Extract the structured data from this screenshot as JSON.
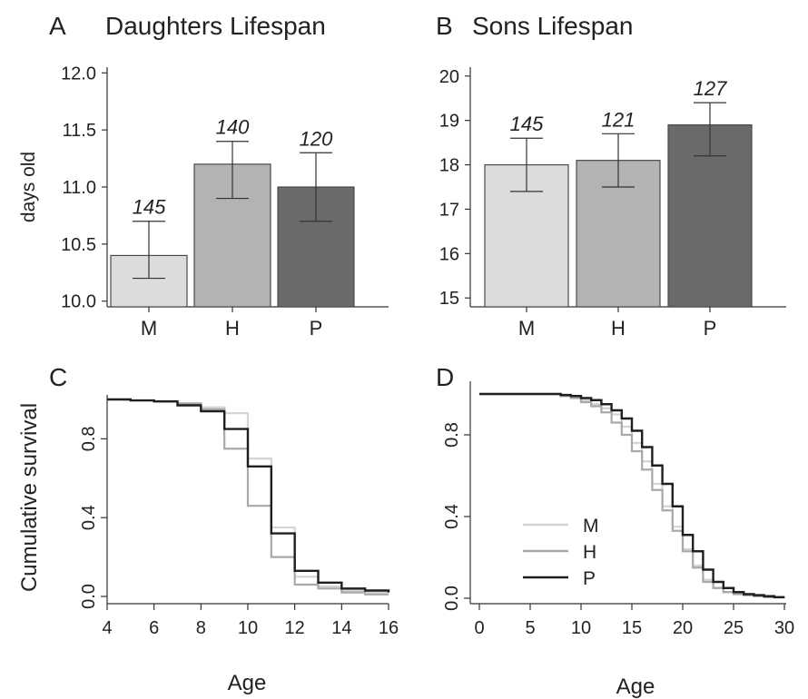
{
  "colors": {
    "M": "#dcdcdc",
    "H": "#b3b3b3",
    "P": "#6a6a6a",
    "line_M": "#d4d4d4",
    "line_H": "#a9a9a9",
    "line_P": "#1f1f1f"
  },
  "chart_data": [
    {
      "panel": "A",
      "type": "bar",
      "title": "Daughters Lifespan",
      "ylabel": "days old",
      "xlabel": "",
      "categories": [
        "M",
        "H",
        "P"
      ],
      "values": [
        10.4,
        11.2,
        11.0
      ],
      "err_low": [
        10.2,
        10.9,
        10.7
      ],
      "err_high": [
        10.7,
        11.4,
        11.3
      ],
      "n_labels": [
        "145",
        "140",
        "120"
      ],
      "ylim": [
        9.95,
        12.05
      ],
      "yticks": [
        10.0,
        10.5,
        11.0,
        11.5,
        12.0
      ],
      "ytick_labels": [
        "10.0",
        "10.5",
        "11.0",
        "11.5",
        "12.0"
      ]
    },
    {
      "panel": "B",
      "type": "bar",
      "title": "Sons Lifespan",
      "ylabel": "",
      "xlabel": "",
      "categories": [
        "M",
        "H",
        "P"
      ],
      "values": [
        18.0,
        18.1,
        18.9
      ],
      "err_low": [
        17.4,
        17.5,
        18.2
      ],
      "err_high": [
        18.6,
        18.7,
        19.4
      ],
      "n_labels": [
        "145",
        "121",
        "127"
      ],
      "ylim": [
        14.8,
        20.2
      ],
      "yticks": [
        15,
        16,
        17,
        18,
        19,
        20
      ],
      "ytick_labels": [
        "15",
        "16",
        "17",
        "18",
        "19",
        "20"
      ]
    },
    {
      "panel": "C",
      "type": "line",
      "title": "",
      "ylabel": "Cumulative survival",
      "xlabel": "Age",
      "xlim": [
        4,
        16
      ],
      "ylim": [
        0,
        1
      ],
      "xticks": [
        4,
        6,
        8,
        10,
        12,
        14,
        16
      ],
      "xtick_labels": [
        "4",
        "6",
        "8",
        "10",
        "12",
        "14",
        "16"
      ],
      "yticks": [
        0.0,
        0.4,
        0.8
      ],
      "ytick_labels": [
        "0.0",
        "0.4",
        "0.8"
      ],
      "series": [
        {
          "key": "M",
          "x": [
            4,
            5,
            6,
            7,
            8,
            9,
            10,
            11,
            12,
            13,
            14,
            15,
            16
          ],
          "y": [
            1.0,
            0.995,
            0.99,
            0.98,
            0.96,
            0.93,
            0.7,
            0.35,
            0.1,
            0.05,
            0.03,
            0.02,
            0.02
          ]
        },
        {
          "key": "H",
          "x": [
            4,
            5,
            6,
            7,
            8,
            9,
            10,
            11,
            12,
            13,
            14,
            15,
            16
          ],
          "y": [
            1.0,
            0.995,
            0.99,
            0.98,
            0.95,
            0.75,
            0.46,
            0.2,
            0.06,
            0.04,
            0.02,
            0.01,
            0.01
          ]
        },
        {
          "key": "P",
          "x": [
            4,
            5,
            6,
            7,
            8,
            9,
            10,
            11,
            12,
            13,
            14,
            15,
            16
          ],
          "y": [
            1.0,
            0.995,
            0.99,
            0.97,
            0.94,
            0.85,
            0.66,
            0.32,
            0.13,
            0.07,
            0.04,
            0.03,
            0.02
          ]
        }
      ]
    },
    {
      "panel": "D",
      "type": "line",
      "title": "",
      "ylabel": "",
      "xlabel": "Age",
      "xlim": [
        0,
        30
      ],
      "ylim": [
        0,
        1
      ],
      "xticks": [
        0,
        5,
        10,
        15,
        20,
        25,
        30
      ],
      "xtick_labels": [
        "0",
        "5",
        "10",
        "15",
        "20",
        "25",
        "30"
      ],
      "yticks": [
        0.0,
        0.4,
        0.8
      ],
      "ytick_labels": [
        "0.0",
        "0.4",
        "0.8"
      ],
      "legend": {
        "placement": "bottom-left",
        "entries": [
          "M",
          "H",
          "P"
        ]
      },
      "series": [
        {
          "key": "M",
          "x": [
            0,
            2,
            4,
            6,
            8,
            9,
            10,
            11,
            12,
            13,
            14,
            15,
            16,
            17,
            18,
            19,
            20,
            21,
            22,
            23,
            24,
            25,
            26,
            27,
            28,
            29,
            30
          ],
          "y": [
            1.0,
            1.0,
            1.0,
            1.0,
            0.99,
            0.985,
            0.97,
            0.95,
            0.93,
            0.9,
            0.84,
            0.76,
            0.67,
            0.56,
            0.45,
            0.35,
            0.24,
            0.16,
            0.09,
            0.05,
            0.03,
            0.02,
            0.015,
            0.01,
            0.008,
            0.005,
            0.005
          ]
        },
        {
          "key": "H",
          "x": [
            0,
            2,
            4,
            6,
            8,
            9,
            10,
            11,
            12,
            13,
            14,
            15,
            16,
            17,
            18,
            19,
            20,
            21,
            22,
            23,
            24,
            25,
            26,
            27,
            28,
            29,
            30
          ],
          "y": [
            1.0,
            1.0,
            1.0,
            1.0,
            0.99,
            0.98,
            0.96,
            0.94,
            0.91,
            0.86,
            0.8,
            0.72,
            0.63,
            0.53,
            0.43,
            0.33,
            0.23,
            0.15,
            0.08,
            0.05,
            0.03,
            0.02,
            0.015,
            0.01,
            0.005,
            0.005,
            0.0
          ]
        },
        {
          "key": "P",
          "x": [
            0,
            2,
            4,
            6,
            8,
            9,
            10,
            11,
            12,
            13,
            14,
            15,
            16,
            17,
            18,
            19,
            20,
            21,
            22,
            23,
            24,
            25,
            26,
            27,
            28,
            29,
            30
          ],
          "y": [
            1.0,
            1.0,
            1.0,
            1.0,
            0.995,
            0.99,
            0.98,
            0.97,
            0.95,
            0.92,
            0.88,
            0.82,
            0.74,
            0.65,
            0.56,
            0.45,
            0.31,
            0.23,
            0.14,
            0.08,
            0.05,
            0.03,
            0.02,
            0.015,
            0.01,
            0.005,
            0.005
          ]
        }
      ]
    }
  ]
}
